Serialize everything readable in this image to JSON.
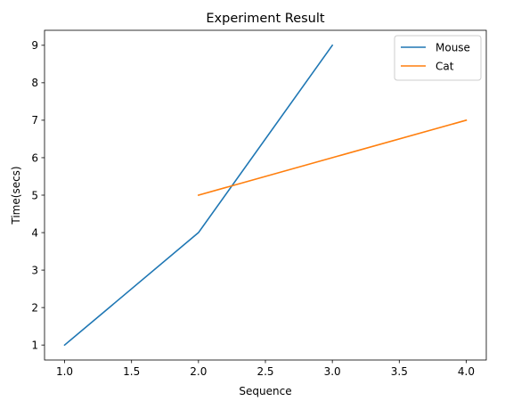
{
  "chart_data": {
    "type": "line",
    "title": "Experiment Result",
    "xlabel": "Sequence",
    "ylabel": "Time(secs)",
    "xlim": [
      0.85,
      4.15
    ],
    "ylim": [
      0.6,
      9.4
    ],
    "xticks": [
      1.0,
      1.5,
      2.0,
      2.5,
      3.0,
      3.5,
      4.0
    ],
    "xtick_labels": [
      "1.0",
      "1.5",
      "2.0",
      "2.5",
      "3.0",
      "3.5",
      "4.0"
    ],
    "yticks": [
      1,
      2,
      3,
      4,
      5,
      6,
      7,
      8,
      9
    ],
    "ytick_labels": [
      "1",
      "2",
      "3",
      "4",
      "5",
      "6",
      "7",
      "8",
      "9"
    ],
    "grid": false,
    "legend_position": "top-right",
    "series": [
      {
        "name": "Mouse",
        "color": "#1f77b4",
        "x": [
          1,
          2,
          3
        ],
        "y": [
          1,
          4,
          9
        ]
      },
      {
        "name": "Cat",
        "color": "#ff7f0e",
        "x": [
          2,
          4
        ],
        "y": [
          5,
          7
        ]
      }
    ]
  }
}
